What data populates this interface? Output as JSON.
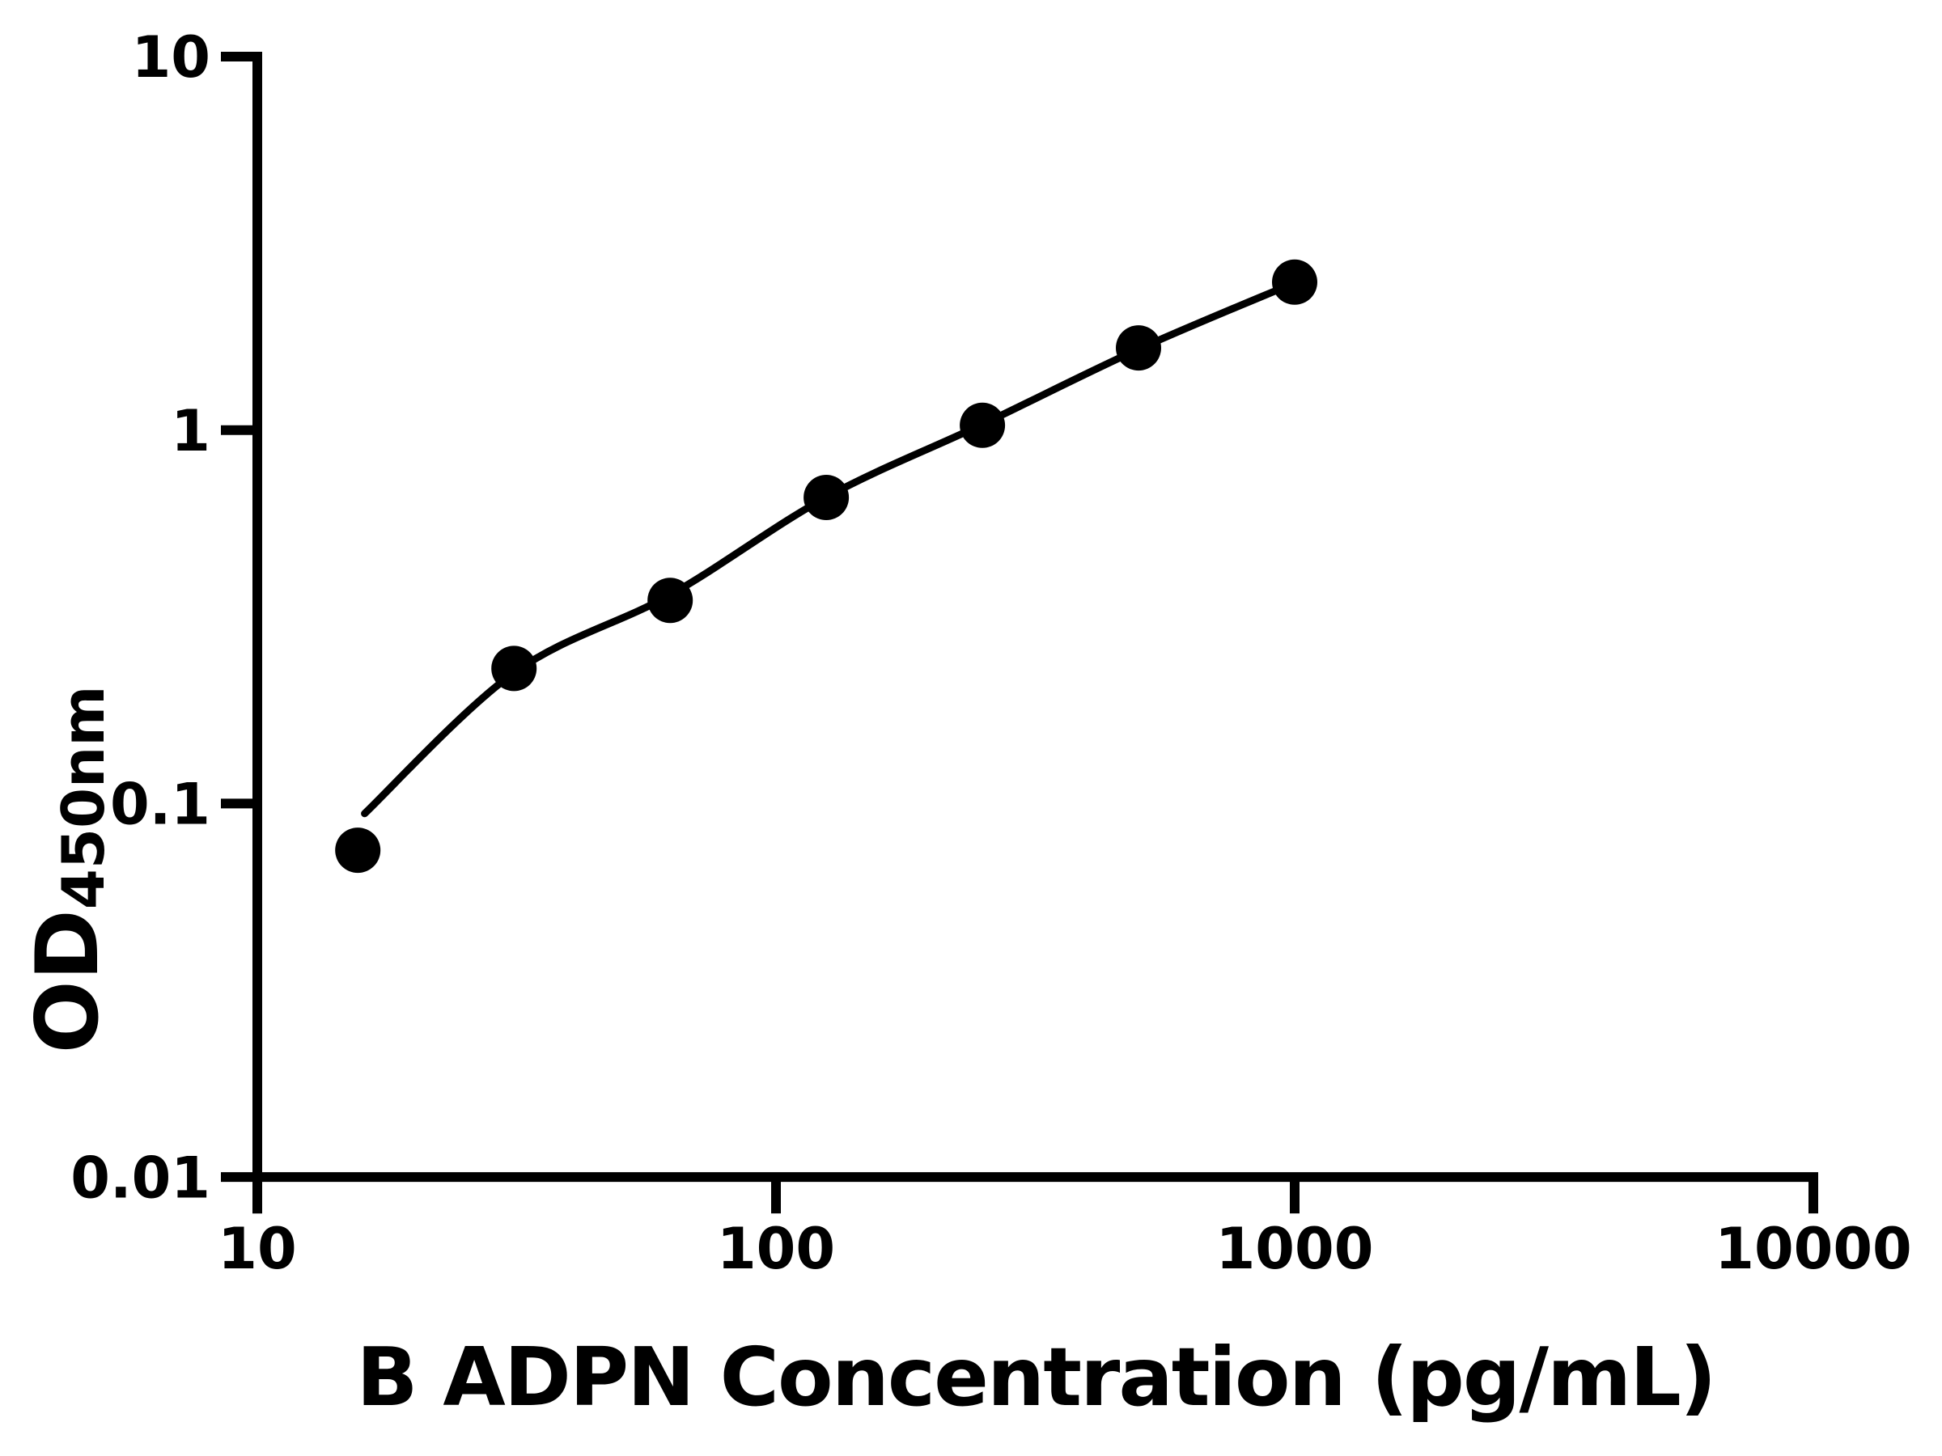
{
  "figure": {
    "background_color": "#ffffff",
    "ink_color": "#000000"
  },
  "chart_data": {
    "type": "scatter",
    "title": "",
    "xlabel": "B ADPN Concentration (pg/mL)",
    "ylabel": "OD",
    "ylabel_subscript": "450nm",
    "x_scale": "log",
    "y_scale": "log",
    "xlim": [
      10,
      10000
    ],
    "ylim": [
      0.01,
      10
    ],
    "grid": false,
    "legend": "none",
    "x_ticks": [
      {
        "value": 10,
        "label": "10"
      },
      {
        "value": 100,
        "label": "100"
      },
      {
        "value": 1000,
        "label": "1000"
      },
      {
        "value": 10000,
        "label": "10000"
      }
    ],
    "y_ticks": [
      {
        "value": 10,
        "label": "10"
      },
      {
        "value": 1,
        "label": "1"
      },
      {
        "value": 0.1,
        "label": "0.1"
      },
      {
        "value": 0.01,
        "label": "0.01"
      }
    ],
    "series": [
      {
        "name": "standard-points",
        "marker": "filled-circle",
        "color": "#000000",
        "points": [
          {
            "x": 15.625,
            "y": 0.075
          },
          {
            "x": 31.25,
            "y": 0.23
          },
          {
            "x": 62.5,
            "y": 0.35
          },
          {
            "x": 125,
            "y": 0.66
          },
          {
            "x": 250,
            "y": 1.03
          },
          {
            "x": 500,
            "y": 1.66
          },
          {
            "x": 1000,
            "y": 2.49
          }
        ]
      }
    ],
    "fit_curve": {
      "name": "standard-curve-fit",
      "color": "#000000",
      "anchors": [
        {
          "x": 16.1,
          "y": 0.094
        },
        {
          "x": 31.25,
          "y": 0.224
        },
        {
          "x": 62.5,
          "y": 0.362
        },
        {
          "x": 125,
          "y": 0.661
        },
        {
          "x": 250,
          "y": 1.036
        },
        {
          "x": 500,
          "y": 1.647
        },
        {
          "x": 1000,
          "y": 2.48
        }
      ]
    }
  }
}
